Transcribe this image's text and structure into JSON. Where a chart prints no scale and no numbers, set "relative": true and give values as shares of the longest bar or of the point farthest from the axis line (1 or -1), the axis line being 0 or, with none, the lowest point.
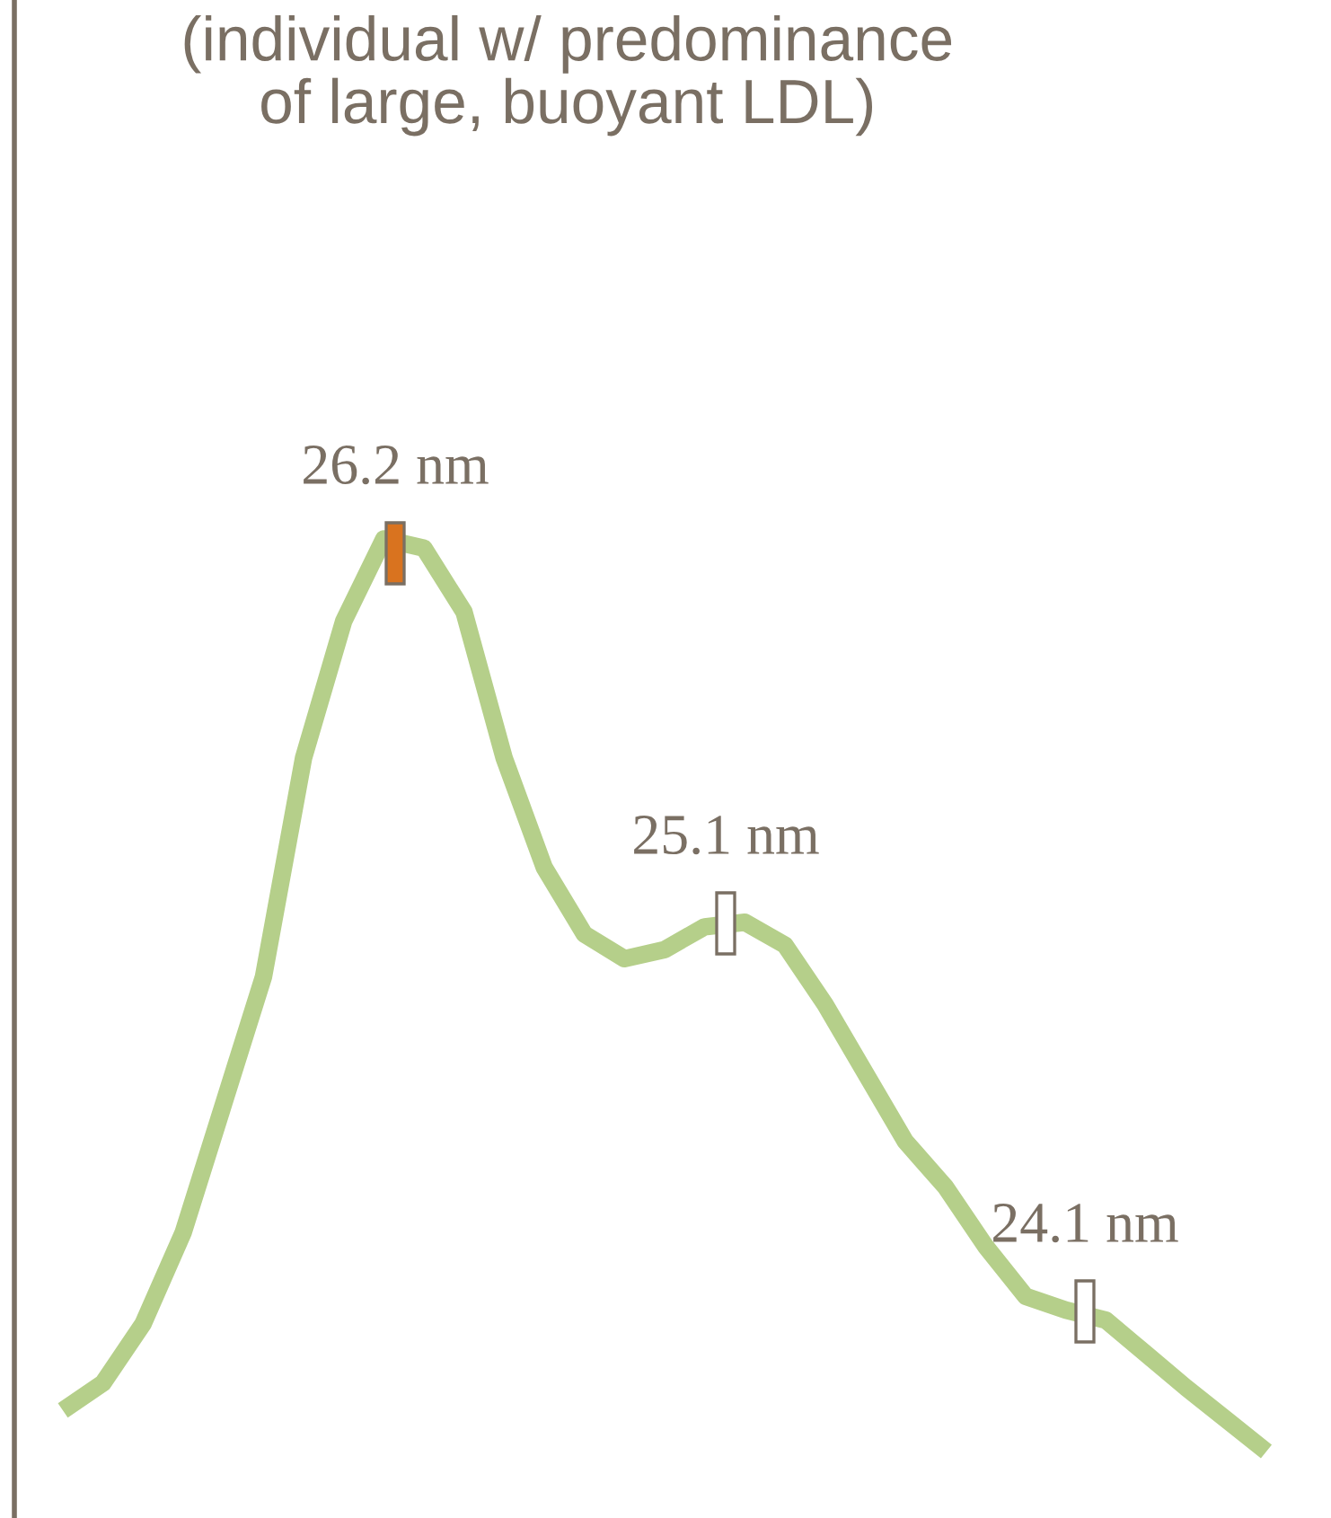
{
  "chart_data": {
    "type": "line",
    "title": "(individual w/ predominance\nof large, buoyant LDL)",
    "relative": true,
    "categories": [
      null,
      null,
      null,
      null,
      null,
      null,
      null,
      null,
      null,
      null,
      null,
      null,
      null,
      null,
      null,
      null,
      null,
      null,
      null,
      null,
      null,
      null,
      null,
      null,
      null,
      null,
      null,
      null,
      null,
      null,
      null
    ],
    "series": [
      {
        "color": "#b5cf8a",
        "values": [
          0.045,
          0.075,
          0.14,
          0.24,
          0.38,
          0.52,
          0.76,
          0.91,
          1.0,
          0.99,
          0.92,
          0.76,
          0.64,
          0.567,
          0.54,
          0.55,
          0.575,
          0.58,
          0.555,
          0.49,
          0.415,
          0.34,
          0.29,
          0.225,
          0.17,
          0.155,
          0.144,
          0.107,
          0.07,
          0.035,
          0
        ]
      }
    ],
    "annotations": [
      "26.2 nm",
      "25.1 nm",
      "24.1 nm"
    ]
  }
}
